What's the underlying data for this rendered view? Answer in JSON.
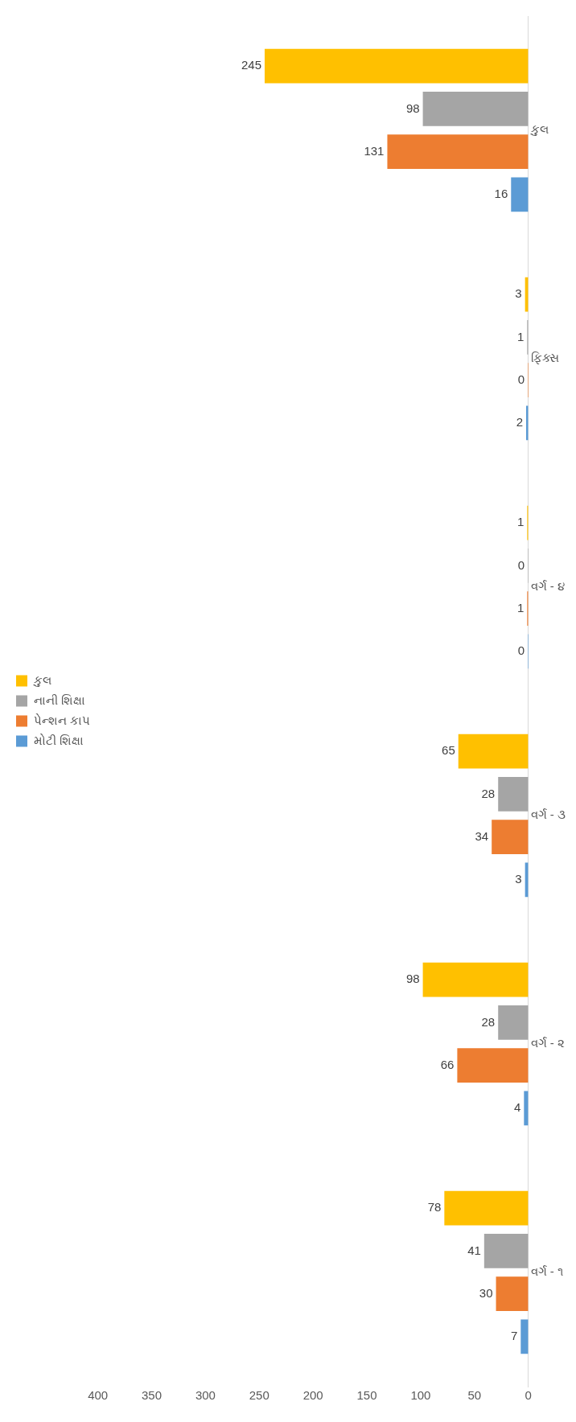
{
  "chart_data": {
    "type": "bar",
    "orientation": "horizontal",
    "categories": [
      "કુલ",
      "ફિક્સ",
      "વર્ગ - ૪",
      "વર્ગ - ૩",
      "વર્ગ - ૨",
      "વર્ગ - ૧"
    ],
    "series": [
      {
        "name": "કુલ",
        "color": "#ffc000",
        "values": [
          245,
          3,
          1,
          65,
          98,
          78
        ]
      },
      {
        "name": "નાની શિક્ષા",
        "color": "#a5a5a5",
        "values": [
          98,
          1,
          0,
          28,
          28,
          41
        ]
      },
      {
        "name": "પેન્શન કાપ",
        "color": "#ed7d31",
        "values": [
          131,
          0,
          1,
          34,
          66,
          30
        ]
      },
      {
        "name": "મોટી શિક્ષા",
        "color": "#5b9bd5",
        "values": [
          16,
          2,
          0,
          3,
          4,
          7
        ]
      }
    ],
    "xlim": [
      400,
      0
    ],
    "xticks": [
      0,
      50,
      100,
      150,
      200,
      250,
      300,
      350,
      400
    ],
    "grid": false,
    "legend": "left",
    "data_labels": true
  }
}
